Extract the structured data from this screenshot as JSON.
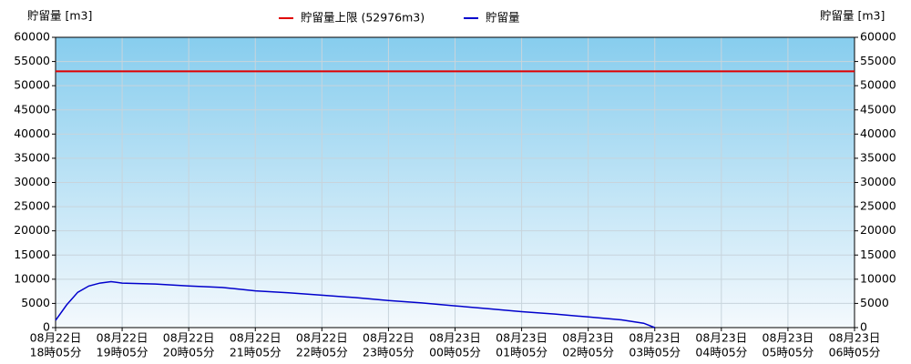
{
  "chart_data": {
    "type": "line",
    "y_label": "貯留量 [m3]",
    "y2_label": "貯留量 [m3]",
    "limit": {
      "name": "貯留量上限 (52976m3)",
      "value": 52976,
      "color": "#e00000"
    },
    "series": [
      {
        "name": "貯留量",
        "color": "#0000cc",
        "x": [
          "08月22日 18時05分",
          "08月22日 18時15分",
          "08月22日 18時25分",
          "08月22日 18時35分",
          "08月22日 18時45分",
          "08月22日 18時55分",
          "08月22日 19時05分",
          "08月22日 19時35分",
          "08月22日 20時05分",
          "08月22日 20時35分",
          "08月22日 21時05分",
          "08月22日 21時35分",
          "08月22日 22時05分",
          "08月22日 22時35分",
          "08月22日 23時05分",
          "08月22日 23時35分",
          "08月23日 00時05分",
          "08月23日 00時35分",
          "08月23日 01時05分",
          "08月23日 01時35分",
          "08月23日 02時05分",
          "08月23日 02時35分",
          "08月23日 02時55分",
          "08月23日 03時05分"
        ],
        "values": [
          1500,
          4700,
          7300,
          8600,
          9200,
          9500,
          9200,
          9000,
          8600,
          8300,
          7600,
          7200,
          6700,
          6200,
          5600,
          5100,
          4500,
          3900,
          3300,
          2800,
          2200,
          1600,
          900,
          0
        ]
      }
    ],
    "xlim": [
      "08月22日 18時05分",
      "08月23日 06時05分"
    ],
    "xticks": [
      [
        "08月22日",
        "18時05分"
      ],
      [
        "08月22日",
        "19時05分"
      ],
      [
        "08月22日",
        "20時05分"
      ],
      [
        "08月22日",
        "21時05分"
      ],
      [
        "08月22日",
        "22時05分"
      ],
      [
        "08月22日",
        "23時05分"
      ],
      [
        "08月23日",
        "00時05分"
      ],
      [
        "08月23日",
        "01時05分"
      ],
      [
        "08月23日",
        "02時05分"
      ],
      [
        "08月23日",
        "03時05分"
      ],
      [
        "08月23日",
        "04時05分"
      ],
      [
        "08月23日",
        "05時05分"
      ],
      [
        "08月23日",
        "06時05分"
      ]
    ],
    "ylim": [
      0,
      60000
    ],
    "yticks": [
      0,
      5000,
      10000,
      15000,
      20000,
      25000,
      30000,
      35000,
      40000,
      45000,
      50000,
      55000,
      60000
    ],
    "y2lim": [
      0,
      60000
    ],
    "y2ticks": [
      0,
      5000,
      10000,
      15000,
      20000,
      25000,
      30000,
      35000,
      40000,
      45000,
      50000,
      55000,
      60000
    ],
    "grid": true
  }
}
